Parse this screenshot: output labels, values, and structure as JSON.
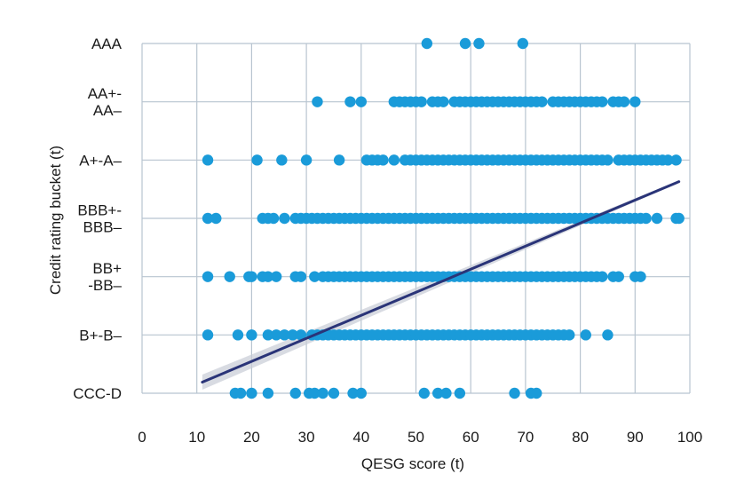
{
  "chart_data": {
    "type": "scatter",
    "xlabel": "QESG score (t)",
    "ylabel": "Credit rating bucket (t)",
    "xlim": [
      0,
      100
    ],
    "x_ticks": [
      0,
      10,
      20,
      30,
      40,
      50,
      60,
      70,
      80,
      90,
      100
    ],
    "grid": true,
    "colors": {
      "points": "#1a9bd9",
      "trend_line": "#2a3478",
      "confidence_band": "#c8ccd6",
      "grid": "#b8c4d0"
    },
    "categories": [
      {
        "label": [
          "CCC-D"
        ]
      },
      {
        "label": [
          "B+-B–"
        ]
      },
      {
        "label": [
          "BB+",
          "-BB–"
        ]
      },
      {
        "label": [
          "BBB+-",
          "BBB–"
        ]
      },
      {
        "label": [
          "A+-A–"
        ]
      },
      {
        "label": [
          "AA+-",
          "AA–"
        ]
      },
      {
        "label": [
          "AAA"
        ]
      }
    ],
    "series": [
      {
        "category": "AAA",
        "x": [
          52,
          59,
          61.5,
          69.5
        ]
      },
      {
        "category": "AA+-AA–",
        "x": [
          32,
          38,
          40,
          46,
          47,
          48,
          49,
          50,
          51,
          53,
          54,
          55,
          57,
          58,
          59,
          60,
          61,
          62,
          63,
          64,
          65,
          66,
          67,
          68,
          69,
          70,
          71,
          72,
          73,
          75,
          76,
          77,
          78,
          79,
          80,
          81,
          82,
          83,
          84,
          86,
          87,
          88,
          90
        ]
      },
      {
        "category": "A+-A–",
        "x": [
          12,
          21,
          25.5,
          30,
          36,
          41,
          42,
          43,
          44,
          46,
          48,
          49,
          50,
          51,
          52,
          53,
          54,
          55,
          56,
          57,
          58,
          59,
          60,
          61,
          62,
          63,
          64,
          65,
          66,
          67,
          68,
          69,
          70,
          71,
          72,
          73,
          74,
          75,
          76,
          77,
          78,
          79,
          80,
          81,
          82,
          83,
          84,
          85,
          87,
          88,
          89,
          90,
          91,
          92,
          93,
          94,
          95,
          96,
          97.5
        ]
      },
      {
        "category": "BBB+-BBB–",
        "x": [
          12,
          13.5,
          22,
          23,
          24,
          26,
          28,
          29,
          30,
          31,
          32,
          33,
          34,
          35,
          36,
          37,
          38,
          39,
          40,
          41,
          42,
          43,
          44,
          45,
          46,
          47,
          48,
          49,
          50,
          51,
          52,
          53,
          54,
          55,
          56,
          57,
          58,
          59,
          60,
          61,
          62,
          63,
          64,
          65,
          66,
          67,
          68,
          69,
          70,
          71,
          72,
          73,
          74,
          75,
          76,
          77,
          78,
          79,
          80,
          81,
          82,
          83,
          84,
          85,
          86,
          87,
          88,
          89,
          90,
          91,
          92,
          94,
          97.5,
          98
        ]
      },
      {
        "category": "BB+-BB–",
        "x": [
          12,
          16,
          19.5,
          20,
          22,
          23,
          24.5,
          28,
          29,
          31.5,
          33,
          34,
          35,
          36,
          37,
          38,
          39,
          40,
          41,
          42,
          43,
          44,
          45,
          46,
          47,
          48,
          49,
          50,
          51,
          52,
          53,
          54,
          55,
          56,
          57,
          58,
          59,
          60,
          61,
          62,
          63,
          64,
          65,
          66,
          67,
          68,
          69,
          70,
          71,
          72,
          73,
          74,
          75,
          76,
          77,
          78,
          79,
          80,
          81,
          82,
          83,
          84,
          86,
          87,
          90,
          91
        ]
      },
      {
        "category": "B+-B–",
        "x": [
          12,
          17.5,
          20,
          23,
          24.5,
          26,
          27.5,
          29,
          31,
          32,
          33,
          34,
          35,
          36,
          37,
          38,
          39,
          40,
          41,
          42,
          43,
          44,
          45,
          46,
          47,
          48,
          49,
          50,
          51,
          52,
          53,
          54,
          55,
          56,
          57,
          58,
          59,
          60,
          61,
          62,
          63,
          64,
          65,
          66,
          67,
          68,
          69,
          70,
          71,
          72,
          73,
          74,
          75,
          76,
          77,
          78,
          81,
          85
        ]
      },
      {
        "category": "CCC-D",
        "x": [
          17,
          18,
          20,
          23,
          28,
          30.5,
          31.5,
          33,
          35,
          38.5,
          40,
          51.5,
          54,
          55.5,
          58,
          68,
          71,
          72
        ]
      }
    ],
    "trend": {
      "x": [
        11,
        98
      ],
      "y": [
        0.19,
        3.63
      ],
      "band_halfwidth": [
        0.13,
        0.02
      ]
    }
  }
}
